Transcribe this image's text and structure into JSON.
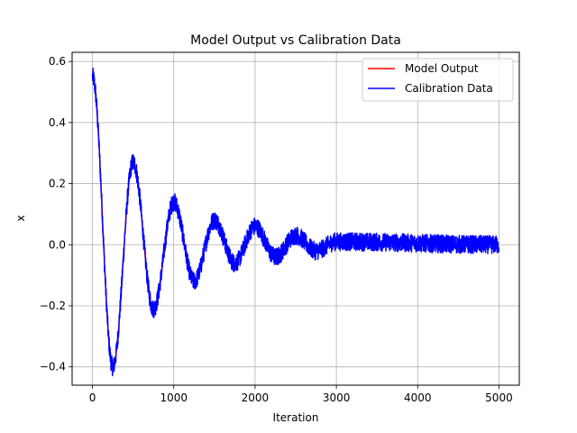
{
  "chart_data": {
    "type": "line",
    "title": "Model Output vs Calibration Data",
    "xlabel": "Iteration",
    "ylabel": "x",
    "xlim": [
      -250,
      5250
    ],
    "ylim": [
      -0.46,
      0.63
    ],
    "xticks": [
      0,
      1000,
      2000,
      3000,
      4000,
      5000
    ],
    "yticks": [
      -0.4,
      -0.2,
      0.0,
      0.2,
      0.4,
      0.6
    ],
    "xtick_labels": [
      "0",
      "1000",
      "2000",
      "3000",
      "4000",
      "5000"
    ],
    "ytick_labels": [
      "−0.4",
      "−0.2",
      "0.0",
      "0.2",
      "0.4",
      "0.6"
    ],
    "grid": true,
    "legend_position": "top-right",
    "series": [
      {
        "name": "Model Output",
        "color": "#ff0000",
        "x_points": [
          0,
          250,
          500,
          750,
          1000,
          1250,
          1500,
          1750,
          2000,
          2250,
          2500,
          2750,
          3000,
          5000
        ],
        "y_points": [
          0.55,
          -0.4,
          0.27,
          -0.21,
          0.14,
          -0.12,
          0.08,
          -0.06,
          0.06,
          -0.04,
          0.03,
          -0.02,
          0.01,
          0.0
        ]
      },
      {
        "name": "Calibration Data",
        "color": "#0000ff",
        "x_points": [
          0,
          250,
          500,
          750,
          1000,
          1250,
          1500,
          1750,
          2000,
          2250,
          2500,
          2750,
          3000,
          5000
        ],
        "y_points": [
          0.55,
          -0.4,
          0.27,
          -0.21,
          0.14,
          -0.12,
          0.08,
          -0.06,
          0.06,
          -0.04,
          0.03,
          -0.02,
          0.01,
          0.0
        ],
        "noise_amplitude": 0.03,
        "iterations": 5000
      }
    ]
  }
}
